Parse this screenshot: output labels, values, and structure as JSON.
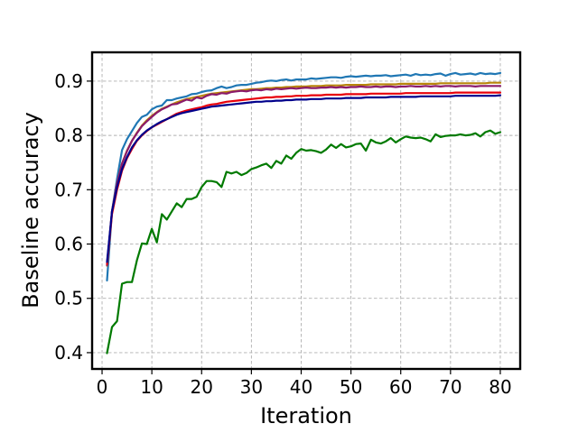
{
  "chart_data": {
    "type": "line",
    "title": "",
    "xlabel": "Iteration",
    "ylabel": "Baseline accuracy",
    "xlim": [
      -2,
      84
    ],
    "ylim": [
      0.37,
      0.953
    ],
    "xticks": [
      0,
      10,
      20,
      30,
      40,
      50,
      60,
      70,
      80
    ],
    "yticks": [
      0.4,
      0.5,
      0.6,
      0.7,
      0.8,
      0.9
    ],
    "ytick_labels": [
      "0.4",
      "0.5",
      "0.6",
      "0.7",
      "0.8",
      "0.9"
    ],
    "grid": true,
    "legend": false,
    "x": [
      1,
      2,
      3,
      4,
      5,
      6,
      7,
      8,
      9,
      10,
      11,
      12,
      13,
      14,
      15,
      16,
      17,
      18,
      19,
      20,
      21,
      22,
      23,
      24,
      25,
      26,
      27,
      28,
      29,
      30,
      31,
      32,
      33,
      34,
      35,
      36,
      37,
      38,
      39,
      40,
      41,
      42,
      43,
      44,
      45,
      46,
      47,
      48,
      49,
      50,
      51,
      52,
      53,
      54,
      55,
      56,
      57,
      58,
      59,
      60,
      61,
      62,
      63,
      64,
      65,
      66,
      67,
      68,
      69,
      70,
      71,
      72,
      73,
      74,
      75,
      76,
      77,
      78,
      79,
      80
    ],
    "series": [
      {
        "color": "#1f77b4",
        "values": [
          0.533,
          0.66,
          0.72,
          0.773,
          0.793,
          0.808,
          0.823,
          0.834,
          0.838,
          0.848,
          0.853,
          0.855,
          0.865,
          0.865,
          0.868,
          0.87,
          0.872,
          0.876,
          0.877,
          0.88,
          0.882,
          0.883,
          0.887,
          0.89,
          0.887,
          0.889,
          0.892,
          0.893,
          0.893,
          0.895,
          0.897,
          0.898,
          0.9,
          0.901,
          0.9,
          0.902,
          0.903,
          0.901,
          0.903,
          0.903,
          0.903,
          0.905,
          0.904,
          0.905,
          0.906,
          0.907,
          0.907,
          0.906,
          0.908,
          0.909,
          0.908,
          0.909,
          0.91,
          0.909,
          0.91,
          0.91,
          0.911,
          0.909,
          0.91,
          0.911,
          0.912,
          0.91,
          0.913,
          0.911,
          0.912,
          0.911,
          0.913,
          0.914,
          0.91,
          0.913,
          0.915,
          0.912,
          0.913,
          0.914,
          0.912,
          0.915,
          0.913,
          0.914,
          0.913,
          0.915
        ]
      },
      {
        "color": "#b8860b",
        "values": [
          0.56,
          0.66,
          0.712,
          0.748,
          0.772,
          0.79,
          0.805,
          0.818,
          0.828,
          0.836,
          0.843,
          0.849,
          0.853,
          0.857,
          0.861,
          0.864,
          0.867,
          0.869,
          0.871,
          0.873,
          0.875,
          0.877,
          0.878,
          0.879,
          0.88,
          0.881,
          0.882,
          0.883,
          0.884,
          0.885,
          0.885,
          0.886,
          0.887,
          0.887,
          0.888,
          0.888,
          0.889,
          0.889,
          0.89,
          0.89,
          0.89,
          0.891,
          0.891,
          0.891,
          0.892,
          0.892,
          0.892,
          0.892,
          0.893,
          0.893,
          0.893,
          0.893,
          0.893,
          0.894,
          0.894,
          0.894,
          0.894,
          0.894,
          0.894,
          0.895,
          0.895,
          0.895,
          0.895,
          0.895,
          0.895,
          0.895,
          0.895,
          0.896,
          0.896,
          0.896,
          0.896,
          0.896,
          0.896,
          0.896,
          0.896,
          0.896,
          0.896,
          0.897,
          0.897,
          0.897
        ]
      },
      {
        "color": "#8b1a6b",
        "values": [
          0.561,
          0.66,
          0.712,
          0.748,
          0.771,
          0.79,
          0.804,
          0.817,
          0.826,
          0.834,
          0.842,
          0.848,
          0.852,
          0.857,
          0.858,
          0.862,
          0.866,
          0.864,
          0.87,
          0.868,
          0.873,
          0.876,
          0.875,
          0.878,
          0.877,
          0.88,
          0.881,
          0.882,
          0.881,
          0.883,
          0.884,
          0.883,
          0.885,
          0.884,
          0.886,
          0.885,
          0.886,
          0.887,
          0.886,
          0.887,
          0.888,
          0.887,
          0.887,
          0.888,
          0.888,
          0.889,
          0.888,
          0.889,
          0.888,
          0.889,
          0.889,
          0.89,
          0.889,
          0.889,
          0.89,
          0.889,
          0.89,
          0.89,
          0.889,
          0.89,
          0.89,
          0.891,
          0.89,
          0.89,
          0.891,
          0.89,
          0.891,
          0.89,
          0.891,
          0.891,
          0.89,
          0.891,
          0.891,
          0.891,
          0.89,
          0.891,
          0.891,
          0.891,
          0.891,
          0.891
        ]
      },
      {
        "color": "#e8000b",
        "values": [
          0.563,
          0.655,
          0.7,
          0.735,
          0.758,
          0.775,
          0.79,
          0.8,
          0.808,
          0.815,
          0.82,
          0.825,
          0.83,
          0.835,
          0.84,
          0.843,
          0.846,
          0.848,
          0.85,
          0.852,
          0.855,
          0.857,
          0.858,
          0.86,
          0.862,
          0.863,
          0.864,
          0.865,
          0.866,
          0.867,
          0.868,
          0.869,
          0.87,
          0.87,
          0.871,
          0.871,
          0.872,
          0.872,
          0.873,
          0.873,
          0.873,
          0.874,
          0.874,
          0.874,
          0.875,
          0.875,
          0.875,
          0.875,
          0.876,
          0.876,
          0.876,
          0.876,
          0.876,
          0.877,
          0.877,
          0.877,
          0.877,
          0.877,
          0.877,
          0.877,
          0.878,
          0.878,
          0.878,
          0.878,
          0.878,
          0.878,
          0.878,
          0.878,
          0.878,
          0.878,
          0.879,
          0.879,
          0.879,
          0.879,
          0.879,
          0.879,
          0.879,
          0.879,
          0.879,
          0.879
        ]
      },
      {
        "color": "#00008b",
        "values": [
          0.567,
          0.66,
          0.705,
          0.738,
          0.76,
          0.778,
          0.791,
          0.801,
          0.809,
          0.815,
          0.821,
          0.826,
          0.83,
          0.834,
          0.838,
          0.841,
          0.843,
          0.845,
          0.847,
          0.849,
          0.851,
          0.853,
          0.854,
          0.855,
          0.856,
          0.857,
          0.858,
          0.859,
          0.86,
          0.861,
          0.862,
          0.862,
          0.863,
          0.863,
          0.864,
          0.864,
          0.865,
          0.865,
          0.866,
          0.866,
          0.866,
          0.867,
          0.867,
          0.867,
          0.868,
          0.868,
          0.868,
          0.868,
          0.869,
          0.869,
          0.869,
          0.869,
          0.87,
          0.87,
          0.87,
          0.87,
          0.87,
          0.871,
          0.871,
          0.871,
          0.871,
          0.871,
          0.871,
          0.872,
          0.872,
          0.872,
          0.872,
          0.872,
          0.872,
          0.872,
          0.873,
          0.873,
          0.873,
          0.873,
          0.873,
          0.873,
          0.873,
          0.873,
          0.873,
          0.874
        ]
      },
      {
        "color": "#007a00",
        "values": [
          0.399,
          0.447,
          0.458,
          0.527,
          0.53,
          0.53,
          0.57,
          0.601,
          0.6,
          0.628,
          0.603,
          0.655,
          0.645,
          0.66,
          0.675,
          0.668,
          0.683,
          0.683,
          0.687,
          0.705,
          0.716,
          0.716,
          0.714,
          0.705,
          0.733,
          0.73,
          0.733,
          0.727,
          0.731,
          0.738,
          0.741,
          0.745,
          0.748,
          0.74,
          0.753,
          0.748,
          0.763,
          0.757,
          0.768,
          0.775,
          0.772,
          0.773,
          0.771,
          0.768,
          0.774,
          0.783,
          0.777,
          0.784,
          0.778,
          0.78,
          0.784,
          0.785,
          0.772,
          0.792,
          0.787,
          0.785,
          0.789,
          0.795,
          0.787,
          0.793,
          0.798,
          0.796,
          0.795,
          0.796,
          0.793,
          0.789,
          0.802,
          0.797,
          0.799,
          0.8,
          0.8,
          0.802,
          0.8,
          0.801,
          0.804,
          0.798,
          0.806,
          0.809,
          0.803,
          0.806
        ]
      }
    ]
  }
}
